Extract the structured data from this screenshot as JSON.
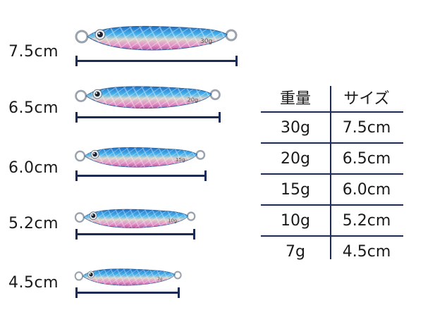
{
  "lures": [
    {
      "size_label": "7.5cm",
      "weight_print": "30g"
    },
    {
      "size_label": "6.5cm",
      "weight_print": "20g"
    },
    {
      "size_label": "6.0cm",
      "weight_print": "15g"
    },
    {
      "size_label": "5.2cm",
      "weight_print": "10g"
    },
    {
      "size_label": "4.5cm",
      "weight_print": "7g"
    }
  ],
  "table": {
    "headers": {
      "weight": "重量",
      "size": "サイズ"
    },
    "rows": [
      {
        "weight": "30g",
        "size": "7.5cm"
      },
      {
        "weight": "20g",
        "size": "6.5cm"
      },
      {
        "weight": "15g",
        "size": "6.0cm"
      },
      {
        "weight": "10g",
        "size": "5.2cm"
      },
      {
        "weight": "7g",
        "size": "4.5cm"
      }
    ]
  },
  "colors": {
    "ruler": "#1c2b56",
    "lure_blue": "#2f8fd8",
    "lure_pink": "#e58fc8",
    "lure_silver": "#d9d2c8"
  }
}
